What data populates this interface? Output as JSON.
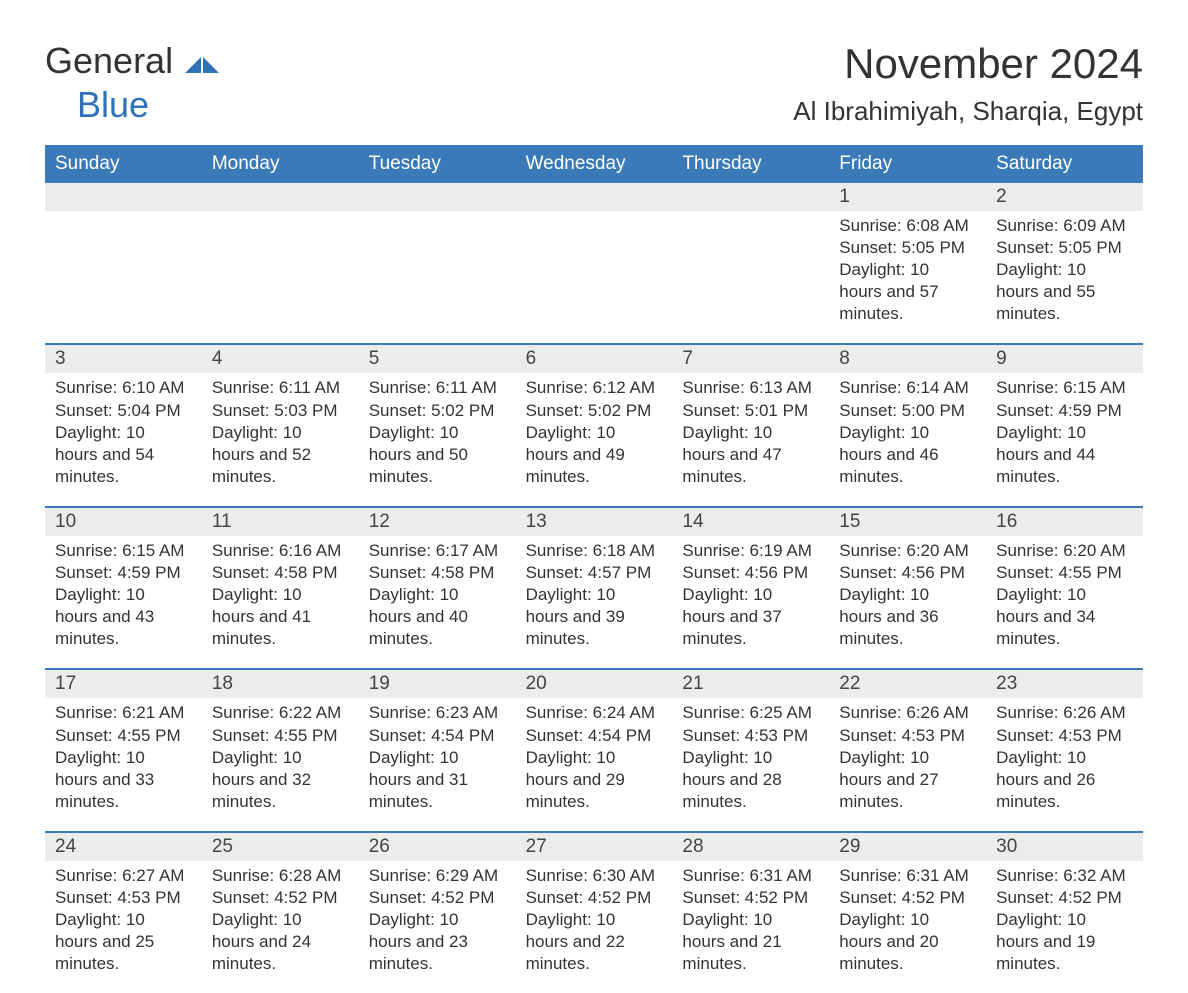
{
  "logo": {
    "text1": "General",
    "text2": "Blue"
  },
  "title": "November 2024",
  "location": "Al Ibrahimiyah, Sharqia, Egypt",
  "colors": {
    "header_bg": "#3a7ab8",
    "header_text": "#ffffff",
    "row_bg": "#ececec",
    "accent": "#2f72b8",
    "text": "#333333",
    "page_bg": "#ffffff"
  },
  "day_headers": [
    "Sunday",
    "Monday",
    "Tuesday",
    "Wednesday",
    "Thursday",
    "Friday",
    "Saturday"
  ],
  "weeks": [
    [
      {
        "n": "",
        "sunrise": "",
        "sunset": "",
        "daylight": ""
      },
      {
        "n": "",
        "sunrise": "",
        "sunset": "",
        "daylight": ""
      },
      {
        "n": "",
        "sunrise": "",
        "sunset": "",
        "daylight": ""
      },
      {
        "n": "",
        "sunrise": "",
        "sunset": "",
        "daylight": ""
      },
      {
        "n": "",
        "sunrise": "",
        "sunset": "",
        "daylight": ""
      },
      {
        "n": "1",
        "sunrise": "Sunrise: 6:08 AM",
        "sunset": "Sunset: 5:05 PM",
        "daylight": "Daylight: 10 hours and 57 minutes."
      },
      {
        "n": "2",
        "sunrise": "Sunrise: 6:09 AM",
        "sunset": "Sunset: 5:05 PM",
        "daylight": "Daylight: 10 hours and 55 minutes."
      }
    ],
    [
      {
        "n": "3",
        "sunrise": "Sunrise: 6:10 AM",
        "sunset": "Sunset: 5:04 PM",
        "daylight": "Daylight: 10 hours and 54 minutes."
      },
      {
        "n": "4",
        "sunrise": "Sunrise: 6:11 AM",
        "sunset": "Sunset: 5:03 PM",
        "daylight": "Daylight: 10 hours and 52 minutes."
      },
      {
        "n": "5",
        "sunrise": "Sunrise: 6:11 AM",
        "sunset": "Sunset: 5:02 PM",
        "daylight": "Daylight: 10 hours and 50 minutes."
      },
      {
        "n": "6",
        "sunrise": "Sunrise: 6:12 AM",
        "sunset": "Sunset: 5:02 PM",
        "daylight": "Daylight: 10 hours and 49 minutes."
      },
      {
        "n": "7",
        "sunrise": "Sunrise: 6:13 AM",
        "sunset": "Sunset: 5:01 PM",
        "daylight": "Daylight: 10 hours and 47 minutes."
      },
      {
        "n": "8",
        "sunrise": "Sunrise: 6:14 AM",
        "sunset": "Sunset: 5:00 PM",
        "daylight": "Daylight: 10 hours and 46 minutes."
      },
      {
        "n": "9",
        "sunrise": "Sunrise: 6:15 AM",
        "sunset": "Sunset: 4:59 PM",
        "daylight": "Daylight: 10 hours and 44 minutes."
      }
    ],
    [
      {
        "n": "10",
        "sunrise": "Sunrise: 6:15 AM",
        "sunset": "Sunset: 4:59 PM",
        "daylight": "Daylight: 10 hours and 43 minutes."
      },
      {
        "n": "11",
        "sunrise": "Sunrise: 6:16 AM",
        "sunset": "Sunset: 4:58 PM",
        "daylight": "Daylight: 10 hours and 41 minutes."
      },
      {
        "n": "12",
        "sunrise": "Sunrise: 6:17 AM",
        "sunset": "Sunset: 4:58 PM",
        "daylight": "Daylight: 10 hours and 40 minutes."
      },
      {
        "n": "13",
        "sunrise": "Sunrise: 6:18 AM",
        "sunset": "Sunset: 4:57 PM",
        "daylight": "Daylight: 10 hours and 39 minutes."
      },
      {
        "n": "14",
        "sunrise": "Sunrise: 6:19 AM",
        "sunset": "Sunset: 4:56 PM",
        "daylight": "Daylight: 10 hours and 37 minutes."
      },
      {
        "n": "15",
        "sunrise": "Sunrise: 6:20 AM",
        "sunset": "Sunset: 4:56 PM",
        "daylight": "Daylight: 10 hours and 36 minutes."
      },
      {
        "n": "16",
        "sunrise": "Sunrise: 6:20 AM",
        "sunset": "Sunset: 4:55 PM",
        "daylight": "Daylight: 10 hours and 34 minutes."
      }
    ],
    [
      {
        "n": "17",
        "sunrise": "Sunrise: 6:21 AM",
        "sunset": "Sunset: 4:55 PM",
        "daylight": "Daylight: 10 hours and 33 minutes."
      },
      {
        "n": "18",
        "sunrise": "Sunrise: 6:22 AM",
        "sunset": "Sunset: 4:55 PM",
        "daylight": "Daylight: 10 hours and 32 minutes."
      },
      {
        "n": "19",
        "sunrise": "Sunrise: 6:23 AM",
        "sunset": "Sunset: 4:54 PM",
        "daylight": "Daylight: 10 hours and 31 minutes."
      },
      {
        "n": "20",
        "sunrise": "Sunrise: 6:24 AM",
        "sunset": "Sunset: 4:54 PM",
        "daylight": "Daylight: 10 hours and 29 minutes."
      },
      {
        "n": "21",
        "sunrise": "Sunrise: 6:25 AM",
        "sunset": "Sunset: 4:53 PM",
        "daylight": "Daylight: 10 hours and 28 minutes."
      },
      {
        "n": "22",
        "sunrise": "Sunrise: 6:26 AM",
        "sunset": "Sunset: 4:53 PM",
        "daylight": "Daylight: 10 hours and 27 minutes."
      },
      {
        "n": "23",
        "sunrise": "Sunrise: 6:26 AM",
        "sunset": "Sunset: 4:53 PM",
        "daylight": "Daylight: 10 hours and 26 minutes."
      }
    ],
    [
      {
        "n": "24",
        "sunrise": "Sunrise: 6:27 AM",
        "sunset": "Sunset: 4:53 PM",
        "daylight": "Daylight: 10 hours and 25 minutes."
      },
      {
        "n": "25",
        "sunrise": "Sunrise: 6:28 AM",
        "sunset": "Sunset: 4:52 PM",
        "daylight": "Daylight: 10 hours and 24 minutes."
      },
      {
        "n": "26",
        "sunrise": "Sunrise: 6:29 AM",
        "sunset": "Sunset: 4:52 PM",
        "daylight": "Daylight: 10 hours and 23 minutes."
      },
      {
        "n": "27",
        "sunrise": "Sunrise: 6:30 AM",
        "sunset": "Sunset: 4:52 PM",
        "daylight": "Daylight: 10 hours and 22 minutes."
      },
      {
        "n": "28",
        "sunrise": "Sunrise: 6:31 AM",
        "sunset": "Sunset: 4:52 PM",
        "daylight": "Daylight: 10 hours and 21 minutes."
      },
      {
        "n": "29",
        "sunrise": "Sunrise: 6:31 AM",
        "sunset": "Sunset: 4:52 PM",
        "daylight": "Daylight: 10 hours and 20 minutes."
      },
      {
        "n": "30",
        "sunrise": "Sunrise: 6:32 AM",
        "sunset": "Sunset: 4:52 PM",
        "daylight": "Daylight: 10 hours and 19 minutes."
      }
    ]
  ]
}
